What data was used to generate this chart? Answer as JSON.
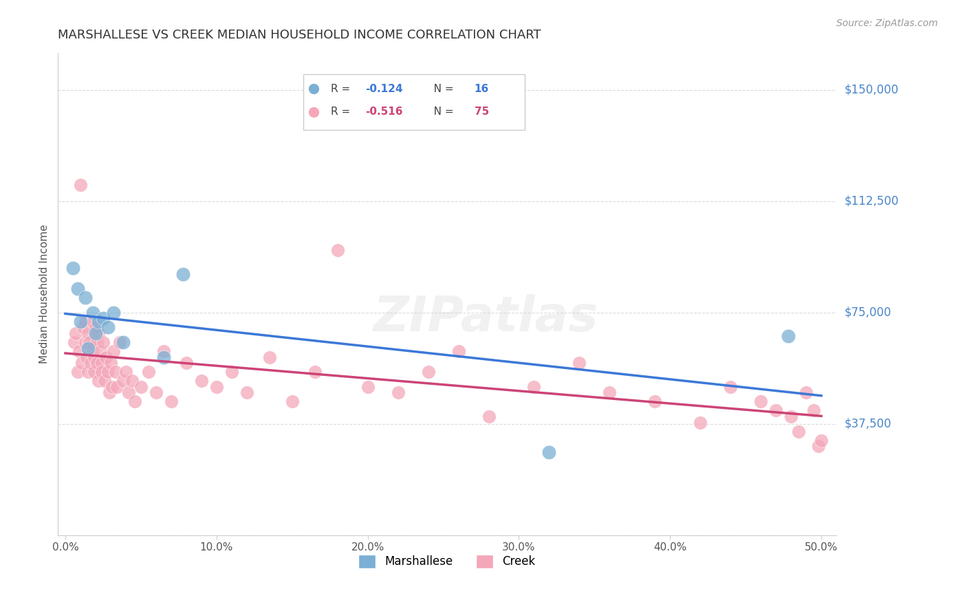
{
  "title": "MARSHALLESE VS CREEK MEDIAN HOUSEHOLD INCOME CORRELATION CHART",
  "source": "Source: ZipAtlas.com",
  "ylabel": "Median Household Income",
  "yticks": [
    0,
    37500,
    75000,
    112500,
    150000
  ],
  "ytick_labels": [
    "",
    "$37,500",
    "$75,000",
    "$112,500",
    "$150,000"
  ],
  "xlim": [
    0.0,
    0.5
  ],
  "ylim": [
    0,
    162500
  ],
  "watermark": "ZIPatlas",
  "marshallese_color": "#7bafd4",
  "creek_color": "#f4a7b9",
  "line_blue": "#3c78d8",
  "line_pink": "#cc4477",
  "background_color": "#ffffff",
  "grid_color": "#cccccc",
  "axis_color": "#cccccc",
  "title_color": "#333333",
  "ytick_color": "#4a86c8",
  "source_color": "#999999",
  "marshallese_x": [
    0.005,
    0.008,
    0.01,
    0.013,
    0.015,
    0.018,
    0.02,
    0.022,
    0.025,
    0.028,
    0.032,
    0.038,
    0.065,
    0.078,
    0.32,
    0.478
  ],
  "marshallese_y": [
    90000,
    83000,
    72000,
    80000,
    63000,
    75000,
    68000,
    72000,
    73000,
    70000,
    75000,
    65000,
    60000,
    88000,
    28000,
    67000
  ],
  "creek_x": [
    0.006,
    0.007,
    0.008,
    0.009,
    0.01,
    0.011,
    0.012,
    0.013,
    0.013,
    0.014,
    0.015,
    0.015,
    0.016,
    0.017,
    0.018,
    0.018,
    0.019,
    0.019,
    0.02,
    0.021,
    0.021,
    0.022,
    0.022,
    0.023,
    0.024,
    0.024,
    0.025,
    0.026,
    0.027,
    0.028,
    0.029,
    0.03,
    0.031,
    0.032,
    0.033,
    0.034,
    0.036,
    0.038,
    0.04,
    0.042,
    0.044,
    0.046,
    0.05,
    0.055,
    0.06,
    0.065,
    0.07,
    0.08,
    0.09,
    0.1,
    0.11,
    0.12,
    0.135,
    0.15,
    0.165,
    0.18,
    0.2,
    0.22,
    0.24,
    0.26,
    0.28,
    0.31,
    0.34,
    0.36,
    0.39,
    0.42,
    0.44,
    0.46,
    0.47,
    0.48,
    0.485,
    0.49,
    0.495,
    0.498,
    0.5
  ],
  "creek_y": [
    65000,
    68000,
    55000,
    62000,
    118000,
    58000,
    70000,
    65000,
    72000,
    60000,
    55000,
    68000,
    65000,
    58000,
    63000,
    72000,
    60000,
    55000,
    70000,
    58000,
    65000,
    52000,
    68000,
    62000,
    58000,
    55000,
    65000,
    52000,
    60000,
    55000,
    48000,
    58000,
    50000,
    62000,
    55000,
    50000,
    65000,
    52000,
    55000,
    48000,
    52000,
    45000,
    50000,
    55000,
    48000,
    62000,
    45000,
    58000,
    52000,
    50000,
    55000,
    48000,
    60000,
    45000,
    55000,
    96000,
    50000,
    48000,
    55000,
    62000,
    40000,
    50000,
    58000,
    48000,
    45000,
    38000,
    50000,
    45000,
    42000,
    40000,
    35000,
    48000,
    42000,
    30000,
    32000
  ]
}
